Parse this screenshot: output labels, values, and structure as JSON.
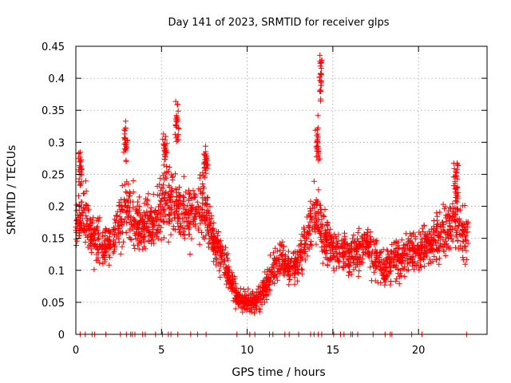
{
  "chart_data": {
    "type": "scatter",
    "title": "Day 141 of 2023, SRMTID for receiver glps",
    "xlabel": "GPS time / hours",
    "ylabel": "SRMTID / TECUs",
    "xlim": [
      0,
      24
    ],
    "ylim": [
      0,
      0.45
    ],
    "grid": true,
    "marker": "+",
    "colors": {
      "series": "#ff0000",
      "grid": "#a0a0a0",
      "axis": "#000000"
    },
    "x_ticks": [
      0,
      5,
      10,
      15,
      20
    ],
    "x_tick_labels": [
      "0",
      "5",
      "10",
      "15",
      "20"
    ],
    "y_ticks": [
      0,
      0.05,
      0.1,
      0.15,
      0.2,
      0.25,
      0.3,
      0.35,
      0.4,
      0.45
    ],
    "y_tick_labels": [
      "0",
      "0.05",
      "0.1",
      "0.15",
      "0.2",
      "0.25",
      "0.3",
      "0.35",
      "0.4",
      "0.45"
    ],
    "series": [
      {
        "name": "SRMTID",
        "trend": [
          [
            0.0,
            0.17,
            0.04
          ],
          [
            0.5,
            0.19,
            0.05
          ],
          [
            1.0,
            0.15,
            0.04
          ],
          [
            1.5,
            0.14,
            0.03
          ],
          [
            2.0,
            0.14,
            0.03
          ],
          [
            2.5,
            0.17,
            0.04
          ],
          [
            3.0,
            0.2,
            0.05
          ],
          [
            3.5,
            0.18,
            0.04
          ],
          [
            4.0,
            0.17,
            0.04
          ],
          [
            4.5,
            0.17,
            0.04
          ],
          [
            5.0,
            0.2,
            0.05
          ],
          [
            5.5,
            0.21,
            0.05
          ],
          [
            6.0,
            0.2,
            0.05
          ],
          [
            6.5,
            0.18,
            0.04
          ],
          [
            7.0,
            0.19,
            0.04
          ],
          [
            7.5,
            0.2,
            0.05
          ],
          [
            8.0,
            0.15,
            0.03
          ],
          [
            8.5,
            0.12,
            0.03
          ],
          [
            9.0,
            0.09,
            0.02
          ],
          [
            9.5,
            0.05,
            0.015
          ],
          [
            10.0,
            0.05,
            0.015
          ],
          [
            10.5,
            0.05,
            0.015
          ],
          [
            11.0,
            0.07,
            0.02
          ],
          [
            11.5,
            0.1,
            0.025
          ],
          [
            12.0,
            0.12,
            0.03
          ],
          [
            12.5,
            0.1,
            0.025
          ],
          [
            13.0,
            0.11,
            0.03
          ],
          [
            13.5,
            0.16,
            0.04
          ],
          [
            14.0,
            0.19,
            0.05
          ],
          [
            14.5,
            0.15,
            0.04
          ],
          [
            15.0,
            0.13,
            0.03
          ],
          [
            15.5,
            0.13,
            0.03
          ],
          [
            16.0,
            0.12,
            0.03
          ],
          [
            16.5,
            0.13,
            0.03
          ],
          [
            17.0,
            0.14,
            0.03
          ],
          [
            17.5,
            0.12,
            0.03
          ],
          [
            18.0,
            0.1,
            0.025
          ],
          [
            18.5,
            0.12,
            0.03
          ],
          [
            19.0,
            0.12,
            0.03
          ],
          [
            19.5,
            0.13,
            0.03
          ],
          [
            20.0,
            0.13,
            0.03
          ],
          [
            20.5,
            0.14,
            0.03
          ],
          [
            21.0,
            0.15,
            0.035
          ],
          [
            21.5,
            0.16,
            0.035
          ],
          [
            22.0,
            0.18,
            0.04
          ],
          [
            22.5,
            0.17,
            0.04
          ],
          [
            22.9,
            0.15,
            0.04
          ]
        ],
        "clusters": [
          [
            0.25,
            0.26,
            0.03
          ],
          [
            2.9,
            0.3,
            0.03
          ],
          [
            5.2,
            0.29,
            0.03
          ],
          [
            5.9,
            0.33,
            0.03
          ],
          [
            7.6,
            0.27,
            0.02
          ],
          [
            14.3,
            0.4,
            0.045
          ],
          [
            14.1,
            0.3,
            0.04
          ],
          [
            22.2,
            0.24,
            0.03
          ]
        ],
        "zero_points_x": [
          0.25,
          0.55,
          0.95,
          1.1,
          1.75,
          2.6,
          2.95,
          3.2,
          3.3,
          3.45,
          3.9,
          4.05,
          4.65,
          5.05,
          5.4,
          5.55,
          5.95,
          6.7,
          7.1,
          7.6,
          9.4,
          10.15,
          10.45,
          11.3,
          11.5,
          12.2,
          12.45,
          13.0,
          13.7,
          13.9,
          14.15,
          14.35,
          15.05,
          15.45,
          15.65,
          16.05,
          16.15,
          16.45,
          17.35,
          18.05,
          18.35,
          18.45,
          19.6,
          20.2,
          22.8
        ]
      }
    ]
  }
}
